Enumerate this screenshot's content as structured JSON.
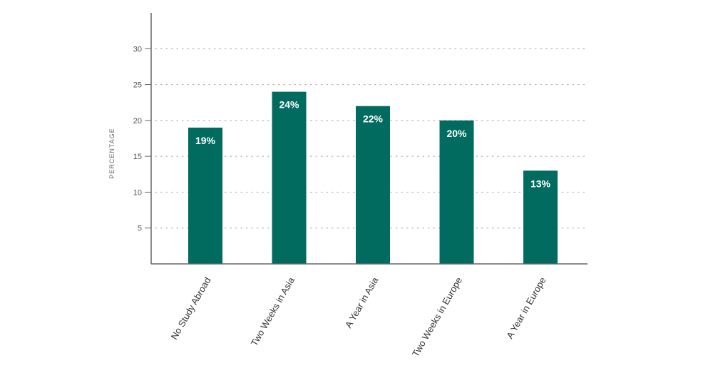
{
  "chart_data": {
    "type": "bar",
    "categories": [
      "No Study Abroad",
      "Two Weeks in Asia",
      "A Year in Asia",
      "Two Weeks in Europe",
      "A Year in Europe"
    ],
    "values": [
      19,
      24,
      22,
      20,
      13
    ],
    "data_labels": [
      "19%",
      "24%",
      "22%",
      "20%",
      "13%"
    ],
    "ylabel": "PERCENTAGE",
    "yticks": [
      5,
      10,
      15,
      20,
      25,
      30
    ],
    "ylim": [
      0,
      35
    ],
    "grid": true,
    "colors": {
      "bar": "#006b5e",
      "axis": "#666666",
      "grid": "#b5b5b5"
    }
  }
}
